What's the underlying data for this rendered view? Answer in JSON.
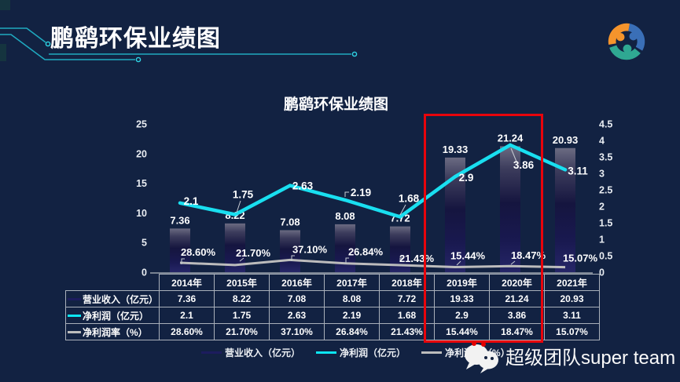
{
  "header": {
    "title": "鹏鹞环保业绩图"
  },
  "logo": {
    "colors": {
      "orange": "#f5942c",
      "blue": "#3a6fb7",
      "teal": "#2fa892"
    }
  },
  "chart": {
    "title": "鹏鹞环保业绩图"
  },
  "chart_data": {
    "type": "combo",
    "title": "鹏鹞环保业绩图",
    "categories": [
      "2014年",
      "2015年",
      "2016年",
      "2017年",
      "2018年",
      "2019年",
      "2020年",
      "2021年"
    ],
    "series": [
      {
        "name": "营业收入（亿元）",
        "type": "bar",
        "axis": "left",
        "values": [
          7.36,
          8.22,
          7.08,
          8.08,
          7.72,
          19.33,
          21.24,
          20.93
        ],
        "labels": [
          "7.36",
          "8.22",
          "7.08",
          "8.08",
          "7.72",
          "19.33",
          "21.24",
          "20.93"
        ],
        "color_top": "#6b6b82",
        "color_mid": "#15153f",
        "color_bottom": "#262668"
      },
      {
        "name": "净利润（亿元）",
        "type": "line",
        "axis": "right",
        "values": [
          2.1,
          1.75,
          2.63,
          2.19,
          1.68,
          2.9,
          3.86,
          3.11
        ],
        "labels": [
          "2.1",
          "1.75",
          "2.63",
          "2.19",
          "1.68",
          "2.9",
          "3.86",
          "3.11"
        ],
        "color": "#19dff0"
      },
      {
        "name": "净利润率（%）",
        "type": "line",
        "axis": "right-as-fraction",
        "values": [
          28.6,
          21.7,
          37.1,
          26.84,
          21.43,
          15.44,
          18.47,
          15.07
        ],
        "labels": [
          "28.60%",
          "21.70%",
          "37.10%",
          "26.84%",
          "21.43%",
          "15.44%",
          "18.47%",
          "15.07%"
        ],
        "color": "#bcbcbc"
      }
    ],
    "left_axis": {
      "range": [
        0,
        25
      ],
      "tick_labels": [
        "0",
        "5",
        "10",
        "15",
        "20",
        "25"
      ]
    },
    "right_axis": {
      "range": [
        0,
        4.5
      ],
      "tick_labels": [
        "0",
        "0.5",
        "1",
        "1.5",
        "2",
        "2.5",
        "3",
        "3.5",
        "4",
        "4.5"
      ]
    },
    "grid": false,
    "legend_position": "bottom",
    "highlight": {
      "categories": [
        "2019年",
        "2020年"
      ],
      "color": "#e8040b"
    }
  },
  "table": {
    "years": [
      "2014年",
      "2015年",
      "2016年",
      "2017年",
      "2018年",
      "2019年",
      "2020年",
      "2021年"
    ],
    "rows": [
      {
        "label": "营业收入（亿元）",
        "swatch_color": "#1c1c5e",
        "cells": [
          "7.36",
          "8.22",
          "7.08",
          "8.08",
          "7.72",
          "19.33",
          "21.24",
          "20.93"
        ]
      },
      {
        "label": "净利润（亿元）",
        "swatch_color": "#0ce6f2",
        "cells": [
          "2.1",
          "1.75",
          "2.63",
          "2.19",
          "1.68",
          "2.9",
          "3.86",
          "3.11"
        ]
      },
      {
        "label": "净利润率（%）",
        "swatch_color": "#bcbcbc",
        "cells": [
          "28.60%",
          "21.70%",
          "37.10%",
          "26.84%",
          "21.43%",
          "15.44%",
          "18.47%",
          "15.07%"
        ]
      }
    ]
  },
  "legend": {
    "items": [
      {
        "label": "营业收入（亿元）",
        "color": "#1c1c5e"
      },
      {
        "label": "净利润（亿元）",
        "color": "#0ce6f2"
      },
      {
        "label": "净利润率（%）",
        "color": "#bcbcbc"
      }
    ]
  },
  "footer": {
    "brand": "超级团队super team"
  },
  "colors": {
    "background": "#122242",
    "accent_cyan": "#1fa9c0",
    "red": "#e8040b"
  }
}
